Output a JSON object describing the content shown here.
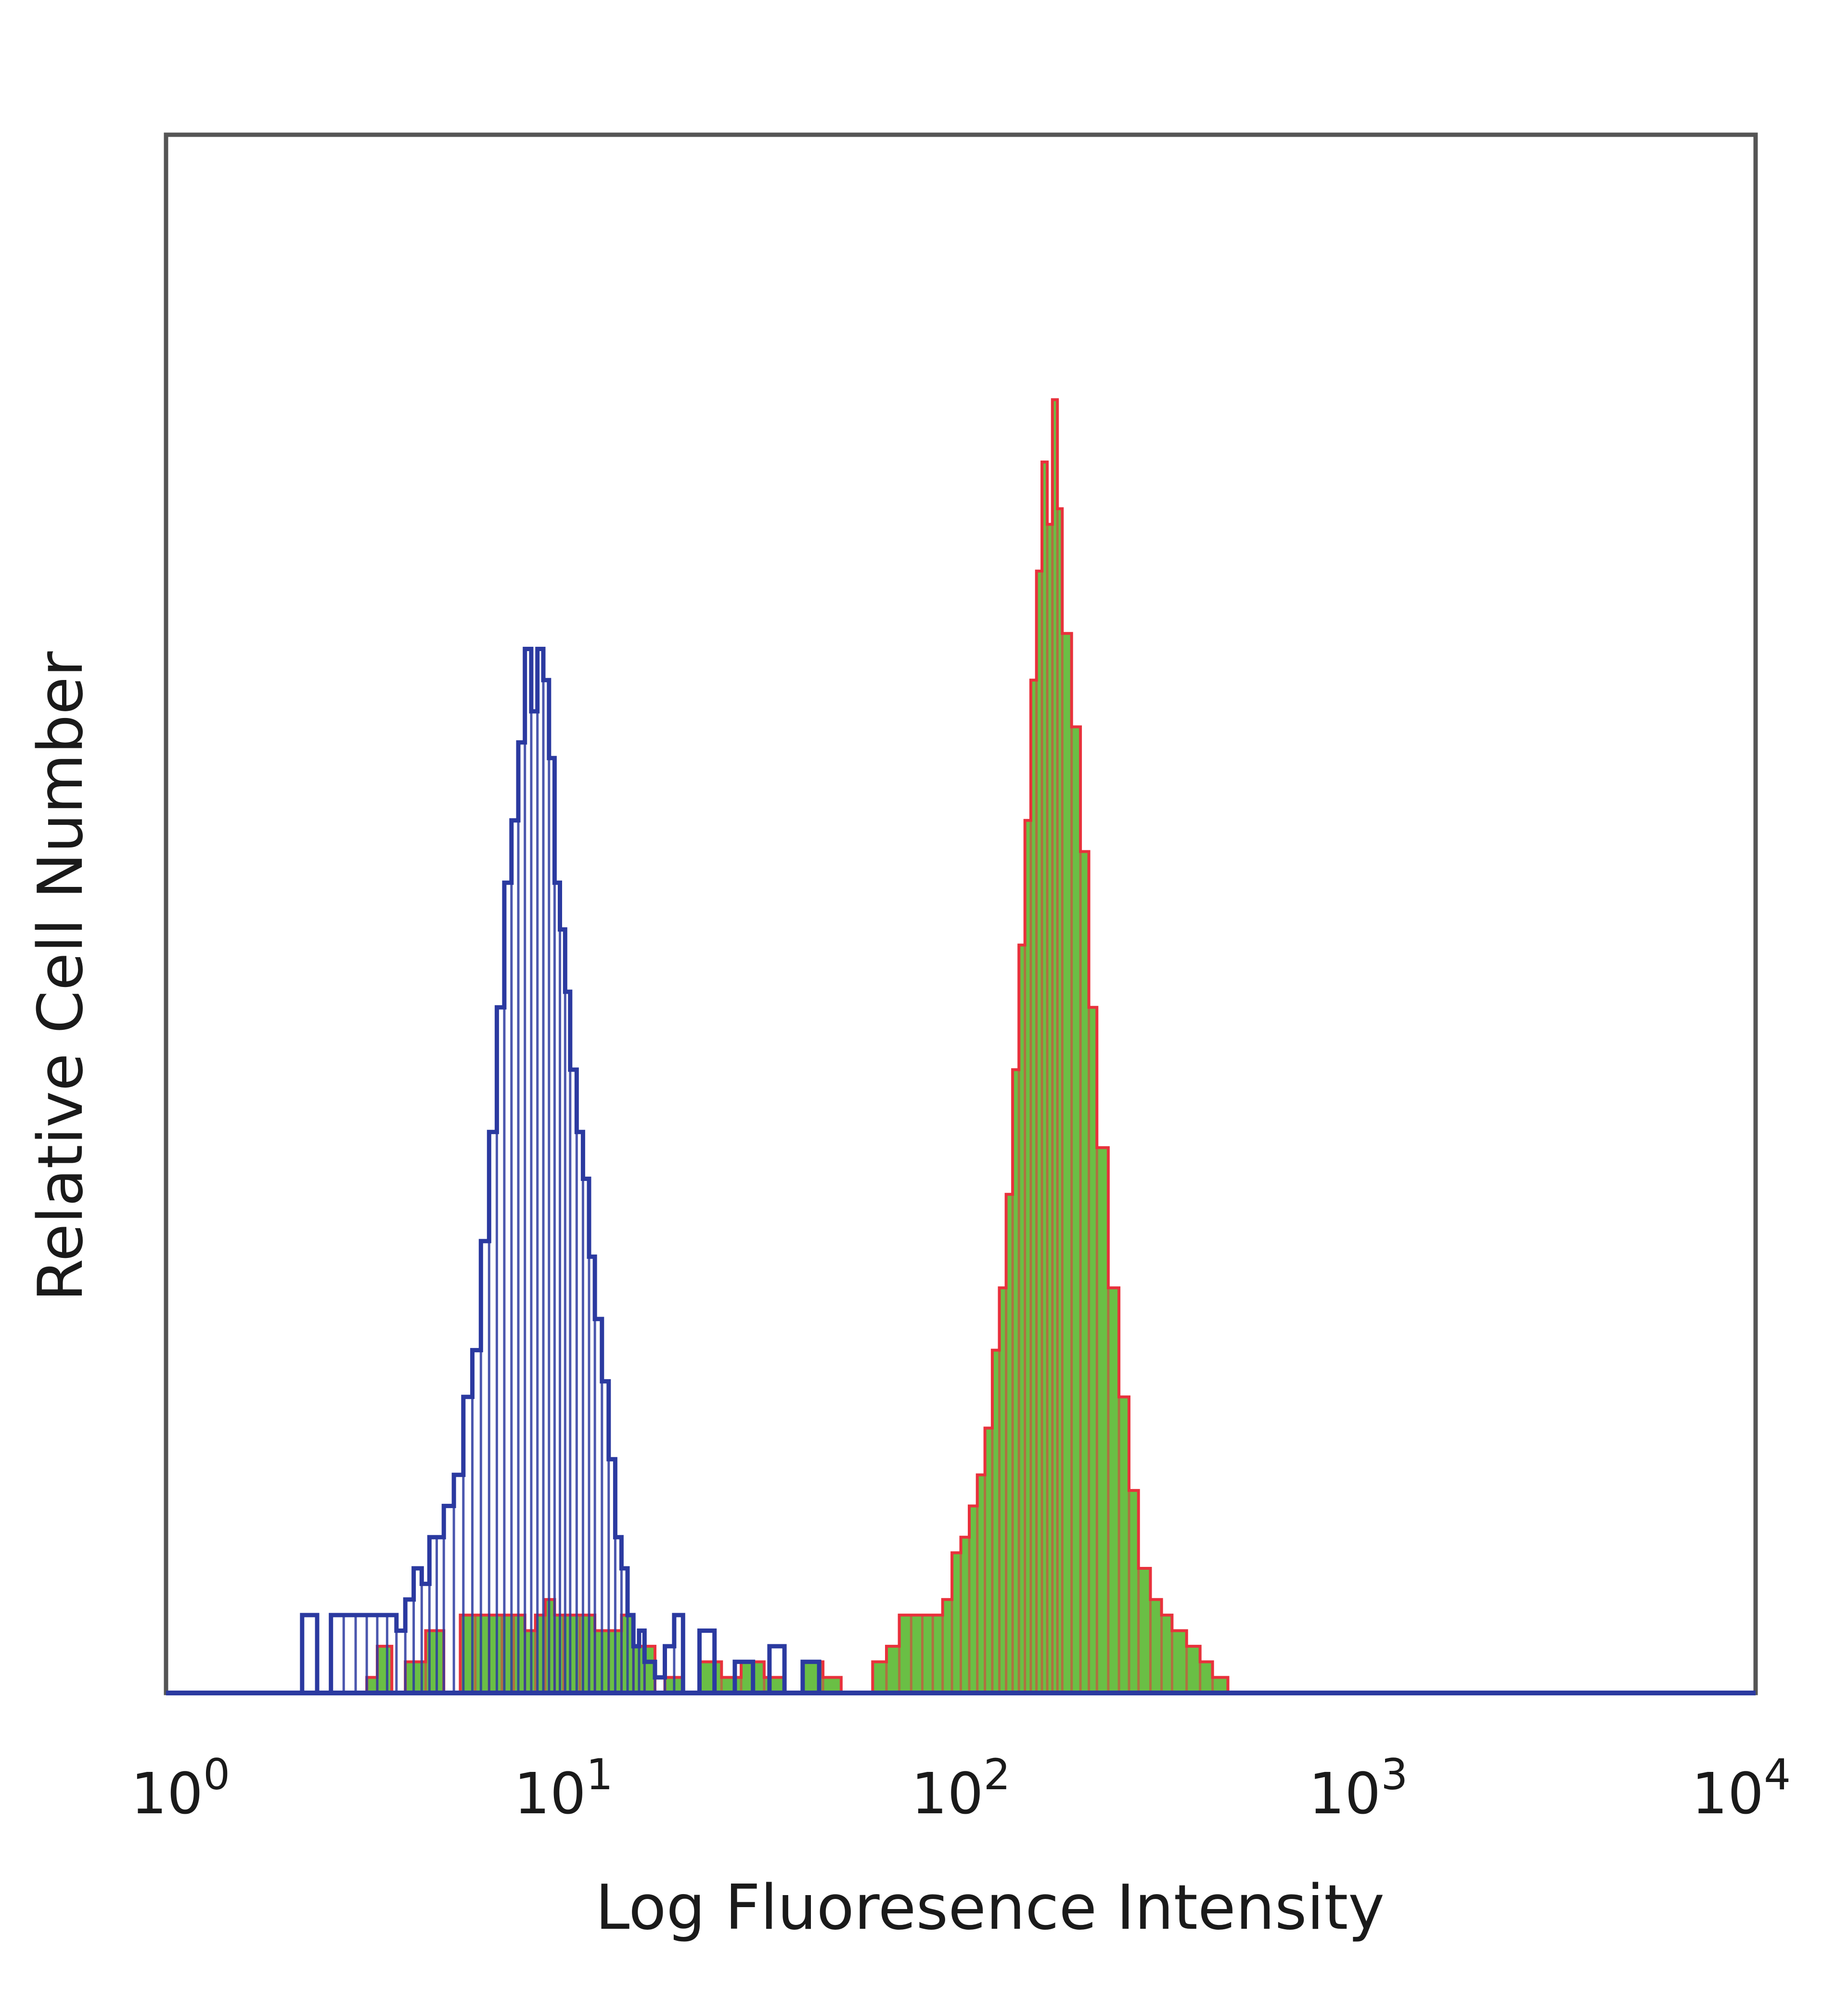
{
  "chart_data": {
    "type": "histogram",
    "xscale": "log",
    "xlim": [
      1,
      10000
    ],
    "ylim": [
      0,
      1
    ],
    "xlabel": "Log Fluoresence Intensity",
    "ylabel": "Relative Cell Number",
    "x_ticks": [
      {
        "value": 1,
        "base": "10",
        "exp": "0"
      },
      {
        "value": 10,
        "base": "10",
        "exp": "1"
      },
      {
        "value": 100,
        "base": "10",
        "exp": "2"
      },
      {
        "value": 1000,
        "base": "10",
        "exp": "3"
      },
      {
        "value": 10000,
        "base": "10",
        "exp": "4"
      }
    ],
    "grid": false,
    "legend": "none",
    "series": [
      {
        "style": "filled",
        "color": "#6abf45",
        "edge_color": "#e8323c",
        "x": [
          3.2,
          3.4,
          3.7,
          4.0,
          4.5,
          5.0,
          5.5,
          6.0,
          6.5,
          7.0,
          7.5,
          8.0,
          8.5,
          9.0,
          9.5,
          10.0,
          11.0,
          12.0,
          13.0,
          14.0,
          15.0,
          16.0,
          17.0,
          18.0,
          20.0,
          22.0,
          25.0,
          28.0,
          32.0,
          36.0,
          40.0,
          45.0,
          50.0,
          55.0,
          60.0,
          65.0,
          70.0,
          75.0,
          80.0,
          85.0,
          90.0,
          95.0,
          100.0,
          105.0,
          110.0,
          115.0,
          120.0,
          125.0,
          130.0,
          135.0,
          140.0,
          145.0,
          150.0,
          155.0,
          160.0,
          165.0,
          170.0,
          175.0,
          180.0,
          190.0,
          200.0,
          210.0,
          220.0,
          235.0,
          250.0,
          265.0,
          280.0,
          300.0,
          320.0,
          340.0,
          370.0,
          400.0,
          430.0,
          470.0,
          510.0
        ],
        "y": [
          0.01,
          0.03,
          0.0,
          0.02,
          0.04,
          0.0,
          0.05,
          0.05,
          0.05,
          0.05,
          0.05,
          0.04,
          0.05,
          0.06,
          0.05,
          0.05,
          0.05,
          0.04,
          0.04,
          0.05,
          0.03,
          0.03,
          0.0,
          0.01,
          0.0,
          0.02,
          0.01,
          0.02,
          0.01,
          0.0,
          0.02,
          0.01,
          0.0,
          0.0,
          0.02,
          0.03,
          0.05,
          0.05,
          0.05,
          0.05,
          0.06,
          0.09,
          0.1,
          0.12,
          0.14,
          0.17,
          0.22,
          0.26,
          0.32,
          0.4,
          0.48,
          0.56,
          0.65,
          0.72,
          0.79,
          0.75,
          0.83,
          0.76,
          0.68,
          0.62,
          0.54,
          0.44,
          0.35,
          0.26,
          0.19,
          0.13,
          0.08,
          0.06,
          0.05,
          0.04,
          0.03,
          0.02,
          0.01,
          0.0,
          0.0
        ]
      },
      {
        "style": "outline",
        "color": "#2b3aa0",
        "x": [
          2.0,
          2.2,
          2.4,
          2.6,
          2.8,
          3.0,
          3.2,
          3.4,
          3.6,
          3.8,
          4.0,
          4.2,
          4.4,
          4.6,
          4.8,
          5.0,
          5.3,
          5.6,
          5.9,
          6.2,
          6.5,
          6.8,
          7.1,
          7.4,
          7.7,
          8.0,
          8.3,
          8.6,
          8.9,
          9.2,
          9.5,
          9.8,
          10.1,
          10.4,
          10.8,
          11.2,
          11.6,
          12.0,
          12.5,
          13.0,
          13.5,
          14.0,
          14.5,
          15.0,
          15.5,
          16.0,
          17.0,
          18.0,
          19.0,
          20.0,
          22.0,
          24.0,
          27.0,
          30.0,
          33.0,
          36.0,
          40.0,
          44.0,
          48.0
        ],
        "y": [
          0.0,
          0.05,
          0.0,
          0.05,
          0.05,
          0.05,
          0.05,
          0.05,
          0.05,
          0.04,
          0.06,
          0.08,
          0.07,
          0.1,
          0.1,
          0.12,
          0.14,
          0.19,
          0.22,
          0.29,
          0.36,
          0.44,
          0.52,
          0.56,
          0.61,
          0.67,
          0.63,
          0.67,
          0.65,
          0.6,
          0.52,
          0.49,
          0.45,
          0.4,
          0.36,
          0.33,
          0.28,
          0.24,
          0.2,
          0.15,
          0.1,
          0.08,
          0.05,
          0.03,
          0.04,
          0.02,
          0.01,
          0.03,
          0.05,
          0.0,
          0.04,
          0.0,
          0.02,
          0.0,
          0.03,
          0.0,
          0.02,
          0.0,
          0.0
        ]
      }
    ]
  }
}
